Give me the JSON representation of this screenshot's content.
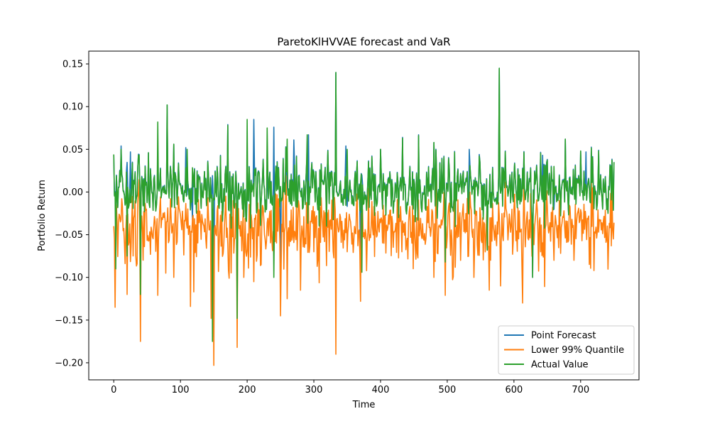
{
  "chart_data": {
    "type": "line",
    "title": "ParetoKlHVVAE forecast and VaR",
    "xlabel": "Time",
    "ylabel": "Portfolio Return",
    "xlim": [
      -37.5,
      787.5
    ],
    "ylim": [
      -0.22,
      0.165
    ],
    "x_ticks": [
      0,
      100,
      200,
      300,
      400,
      500,
      600,
      700
    ],
    "y_ticks": [
      -0.2,
      -0.15,
      -0.1,
      -0.05,
      0.0,
      0.05,
      0.1,
      0.15
    ],
    "x_tick_labels": [
      "0",
      "100",
      "200",
      "300",
      "400",
      "500",
      "600",
      "700"
    ],
    "y_tick_labels": [
      "−0.20",
      "−0.15",
      "−0.10",
      "−0.05",
      "0.00",
      "0.05",
      "0.10",
      "0.15"
    ],
    "grid": false,
    "legend_position": "lower-right",
    "x_range": [
      0,
      750
    ],
    "series": [
      {
        "name": "Point Forecast",
        "color": "#1f77b4",
        "x": [
          0,
          11,
          25,
          40,
          52,
          66,
          80,
          90,
          108,
          118,
          136,
          150,
          171,
          185,
          210,
          240,
          250,
          270,
          292,
          321,
          333,
          348,
          370,
          400,
          433,
          457,
          480,
          497,
          515,
          533,
          548,
          560,
          578,
          600,
          628,
          643,
          677,
          700,
          708,
          727,
          750
        ],
        "values": [
          0.043,
          0.054,
          0.047,
          -0.12,
          0.046,
          0.042,
          0.102,
          0.056,
          0.052,
          -0.033,
          0.024,
          -0.17,
          0.079,
          -0.14,
          0.085,
          0.076,
          -0.1,
          0.061,
          0.067,
          0.049,
          0.14,
          0.054,
          -0.09,
          0.05,
          0.064,
          0.067,
          0.058,
          -0.082,
          0.018,
          0.05,
          0.044,
          -0.068,
          0.145,
          0.018,
          -0.1,
          0.043,
          0.062,
          0.048,
          0.047,
          0.049,
          0.035
        ]
      },
      {
        "name": "Lower 99% Quantile",
        "color": "#ff7f0e",
        "x": [
          0,
          2,
          20,
          40,
          55,
          66,
          78,
          90,
          115,
          120,
          146,
          150,
          172,
          185,
          195,
          210,
          250,
          260,
          280,
          300,
          333,
          350,
          370,
          405,
          432,
          455,
          480,
          497,
          520,
          540,
          563,
          580,
          613,
          640,
          660,
          690,
          720,
          750
        ],
        "values": [
          -0.04,
          -0.135,
          -0.12,
          -0.175,
          -0.073,
          -0.121,
          -0.095,
          -0.1,
          -0.134,
          -0.117,
          -0.148,
          -0.203,
          -0.092,
          -0.182,
          -0.1,
          -0.105,
          -0.145,
          -0.125,
          -0.115,
          -0.07,
          -0.19,
          -0.07,
          -0.128,
          -0.06,
          -0.07,
          -0.072,
          -0.1,
          -0.121,
          -0.08,
          -0.1,
          -0.115,
          -0.11,
          -0.13,
          -0.07,
          -0.08,
          -0.08,
          -0.092,
          -0.036
        ]
      },
      {
        "name": "Actual Value",
        "color": "#2ca02c",
        "x": [
          0,
          3,
          11,
          20,
          40,
          52,
          66,
          80,
          90,
          110,
          136,
          148,
          171,
          185,
          200,
          230,
          240,
          260,
          290,
          321,
          333,
          350,
          372,
          400,
          433,
          457,
          480,
          497,
          515,
          548,
          560,
          578,
          600,
          628,
          660,
          677,
          700,
          727,
          750
        ],
        "values": [
          0.044,
          -0.09,
          0.05,
          -0.075,
          -0.12,
          0.046,
          0.082,
          0.102,
          0.056,
          0.05,
          0.024,
          -0.175,
          0.078,
          -0.148,
          0.085,
          0.075,
          -0.1,
          0.062,
          0.067,
          0.048,
          0.14,
          0.05,
          -0.094,
          0.05,
          0.063,
          0.066,
          0.058,
          -0.082,
          0.018,
          0.042,
          -0.068,
          0.145,
          0.018,
          -0.1,
          0.03,
          0.062,
          0.048,
          0.048,
          0.035
        ]
      }
    ]
  }
}
